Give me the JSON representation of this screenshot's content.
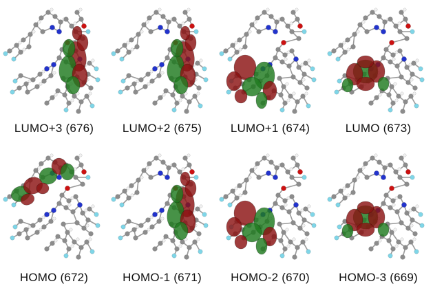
{
  "figure": {
    "orbitals": [
      {
        "label": "LUMO+3 (676)",
        "lobe_region": "right-arm"
      },
      {
        "label": "LUMO+2 (675)",
        "lobe_region": "right-arm"
      },
      {
        "label": "LUMO+1 (674)",
        "lobe_region": "lower-left"
      },
      {
        "label": "LUMO (673)",
        "lobe_region": "center"
      },
      {
        "label": "HOMO (672)",
        "lobe_region": "upper-left"
      },
      {
        "label": "HOMO-1 (671)",
        "lobe_region": "right-arm"
      },
      {
        "label": "HOMO-2 (670)",
        "lobe_region": "lower-left"
      },
      {
        "label": "HOMO-3 (669)",
        "lobe_region": "center"
      }
    ],
    "colors": {
      "lobe_positive": "#8b1212",
      "lobe_negative": "#1e7a1e",
      "carbon": "#8c8c8c",
      "nitrogen": "#2233cc",
      "oxygen": "#cc1111",
      "fluorine": "#7fd6e8",
      "hydrogen": "#f2f2f2"
    }
  }
}
